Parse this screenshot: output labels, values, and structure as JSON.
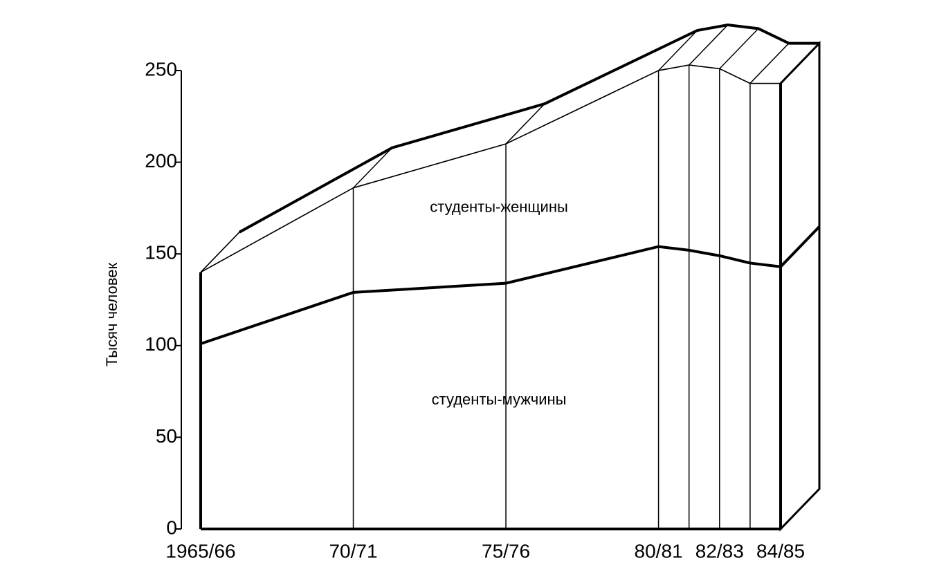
{
  "chart_data": {
    "type": "area3d",
    "y_label": "Тысяч человек",
    "x": [
      1965,
      1970,
      1975,
      1980,
      1981,
      1982,
      1983,
      1984
    ],
    "xlim": [
      1965,
      1984
    ],
    "xticks": [
      {
        "value": 1965,
        "label": "1965/66"
      },
      {
        "value": 1970,
        "label": "70/71"
      },
      {
        "value": 1975,
        "label": "75/76"
      },
      {
        "value": 1980,
        "label": "80/81"
      },
      {
        "value": 1982,
        "label": "82/83"
      },
      {
        "value": 1984,
        "label": "84/85"
      }
    ],
    "ylim": [
      0,
      250
    ],
    "yticks": [
      0,
      50,
      100,
      150,
      200,
      250
    ],
    "stacked": true,
    "series": [
      {
        "name": "студенты-мужчины",
        "color": "#000000",
        "values": [
          101,
          129,
          134,
          154,
          152,
          149,
          145,
          143
        ]
      },
      {
        "name": "студенты-женщины",
        "color": "#000000",
        "values": [
          39,
          57,
          76,
          96,
          101,
          102,
          98,
          100
        ]
      }
    ]
  }
}
